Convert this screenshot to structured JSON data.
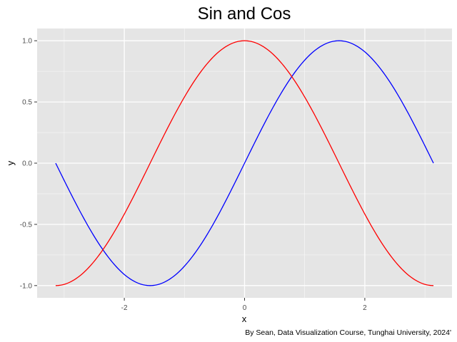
{
  "chart_data": {
    "type": "line",
    "title": "Sin and Cos",
    "xlabel": "x",
    "ylabel": "y",
    "caption": "By Sean, Data Visualization Course, Tunghai University, 2024'",
    "xlim": [
      -3.45,
      3.45
    ],
    "ylim": [
      -1.1,
      1.1
    ],
    "x_ticks": [
      -2,
      0,
      2
    ],
    "x_tick_labels": [
      "-2",
      "0",
      "2"
    ],
    "y_ticks": [
      -1.0,
      -0.5,
      0.0,
      0.5,
      1.0
    ],
    "y_tick_labels": [
      "-1.0",
      "-0.5",
      "0.0",
      "0.5",
      "1.0"
    ],
    "grid": true,
    "background": "#e5e5e5",
    "grid_color": "#ffffff",
    "series": [
      {
        "color": "#0000ff",
        "function": "sin",
        "x": [
          -3.1416,
          -2.7489,
          -2.3562,
          -1.9635,
          -1.5708,
          -1.1781,
          -0.7854,
          -0.3927,
          0.0,
          0.3927,
          0.7854,
          1.1781,
          1.5708,
          1.9635,
          2.3562,
          2.7489,
          3.1416
        ],
        "values": [
          0.0,
          -0.3827,
          -0.7071,
          -0.9239,
          -1.0,
          -0.9239,
          -0.7071,
          -0.3827,
          0.0,
          0.3827,
          0.7071,
          0.9239,
          1.0,
          0.9239,
          0.7071,
          0.3827,
          0.0
        ]
      },
      {
        "color": "#ff0000",
        "function": "cos",
        "x": [
          -3.1416,
          -2.7489,
          -2.3562,
          -1.9635,
          -1.5708,
          -1.1781,
          -0.7854,
          -0.3927,
          0.0,
          0.3927,
          0.7854,
          1.1781,
          1.5708,
          1.9635,
          2.3562,
          2.7489,
          3.1416
        ],
        "values": [
          -1.0,
          -0.9239,
          -0.7071,
          -0.3827,
          0.0,
          0.3827,
          0.7071,
          0.9239,
          1.0,
          0.9239,
          0.7071,
          0.3827,
          0.0,
          -0.3827,
          -0.7071,
          -0.9239,
          -1.0
        ]
      }
    ]
  }
}
